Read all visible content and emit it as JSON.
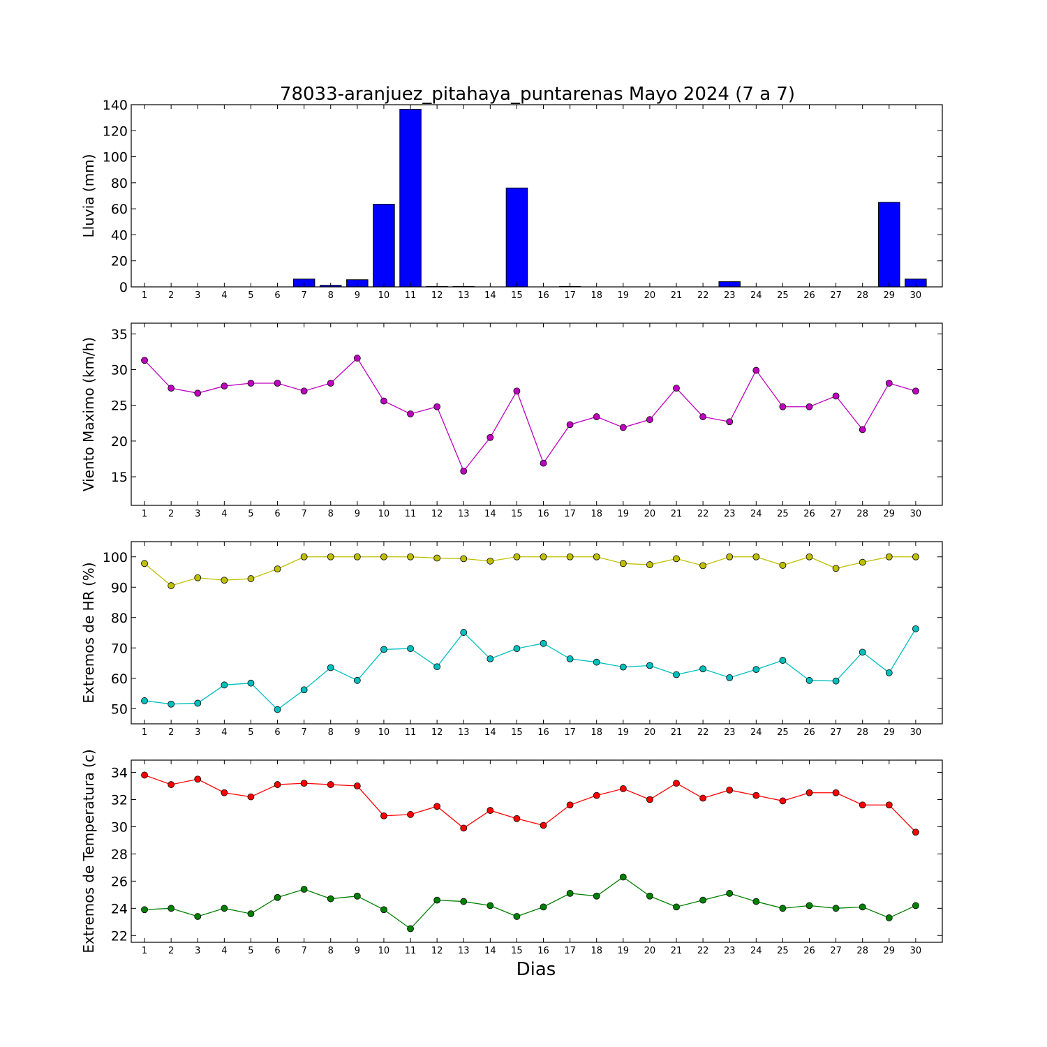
{
  "title": "78033-aranjuez_pitahaya_puntarenas Mayo 2024  (7 a 7)",
  "xlabel": "Dias",
  "chart_data": [
    {
      "type": "bar",
      "ylabel": "Lluvia (mm)",
      "ylim": [
        0,
        140
      ],
      "yticks": [
        0,
        20,
        40,
        60,
        80,
        100,
        120,
        140
      ],
      "categories": [
        1,
        2,
        3,
        4,
        5,
        6,
        7,
        8,
        9,
        10,
        11,
        12,
        13,
        14,
        15,
        16,
        17,
        18,
        19,
        20,
        21,
        22,
        23,
        24,
        25,
        26,
        27,
        28,
        29,
        30
      ],
      "series": [
        {
          "color": "#0000ff",
          "values": [
            0,
            0,
            0,
            0,
            0,
            0,
            6,
            1.2,
            5.5,
            63.5,
            136.5,
            0.3,
            0.3,
            0,
            76,
            0,
            0.3,
            0,
            0,
            0,
            0,
            0,
            4,
            0,
            0,
            0,
            0,
            0,
            65,
            6
          ]
        }
      ]
    },
    {
      "type": "line",
      "ylabel": "Viento Maximo (km/h)",
      "ylim": [
        11,
        36.5
      ],
      "yticks": [
        15,
        20,
        25,
        30,
        35
      ],
      "x": [
        1,
        2,
        3,
        4,
        5,
        6,
        7,
        8,
        9,
        10,
        11,
        12,
        13,
        14,
        15,
        16,
        17,
        18,
        19,
        20,
        21,
        22,
        23,
        24,
        25,
        26,
        27,
        28,
        29,
        30
      ],
      "series": [
        {
          "color": "#bf00bf",
          "values": [
            31.3,
            27.4,
            26.7,
            27.7,
            28.1,
            28.1,
            27.0,
            28.1,
            31.6,
            25.6,
            23.8,
            24.8,
            15.8,
            20.5,
            27.0,
            16.9,
            22.3,
            23.4,
            21.9,
            23.0,
            27.4,
            23.4,
            22.7,
            29.9,
            24.8,
            24.8,
            26.3,
            21.6,
            28.1,
            27.0
          ]
        }
      ]
    },
    {
      "type": "line",
      "ylabel": "Extremos de HR (%)",
      "ylim": [
        45,
        105
      ],
      "yticks": [
        50,
        60,
        70,
        80,
        90,
        100
      ],
      "x": [
        1,
        2,
        3,
        4,
        5,
        6,
        7,
        8,
        9,
        10,
        11,
        12,
        13,
        14,
        15,
        16,
        17,
        18,
        19,
        20,
        21,
        22,
        23,
        24,
        25,
        26,
        27,
        28,
        29,
        30
      ],
      "series": [
        {
          "color": "#bfbf00",
          "values": [
            97.8,
            90.5,
            93.1,
            92.3,
            92.8,
            96.0,
            100,
            100,
            100,
            100,
            100,
            99.6,
            99.4,
            98.6,
            100,
            100,
            100,
            100,
            97.8,
            97.4,
            99.4,
            97.1,
            100,
            100,
            97.2,
            100,
            96.2,
            98.2,
            100,
            100
          ]
        },
        {
          "color": "#00bfbf",
          "values": [
            52.6,
            51.5,
            51.8,
            57.8,
            58.4,
            49.7,
            56.2,
            63.5,
            59.3,
            69.5,
            69.8,
            63.8,
            75.1,
            66.4,
            69.8,
            71.5,
            66.4,
            65.3,
            63.7,
            64.2,
            61.2,
            63.1,
            60.2,
            62.9,
            65.9,
            59.3,
            59.1,
            68.6,
            61.8,
            76.3
          ]
        }
      ]
    },
    {
      "type": "line",
      "ylabel": "Extremos de Temperatura (c)",
      "ylim": [
        21.5,
        34.9
      ],
      "yticks": [
        22,
        24,
        26,
        28,
        30,
        32,
        34
      ],
      "x": [
        1,
        2,
        3,
        4,
        5,
        6,
        7,
        8,
        9,
        10,
        11,
        12,
        13,
        14,
        15,
        16,
        17,
        18,
        19,
        20,
        21,
        22,
        23,
        24,
        25,
        26,
        27,
        28,
        29,
        30
      ],
      "series": [
        {
          "color": "#ff0000",
          "values": [
            33.8,
            33.1,
            33.5,
            32.5,
            32.2,
            33.1,
            33.2,
            33.1,
            33.0,
            30.8,
            30.9,
            31.5,
            29.9,
            31.2,
            30.6,
            30.1,
            31.6,
            32.3,
            32.8,
            32.0,
            33.2,
            32.1,
            32.7,
            32.3,
            31.9,
            32.5,
            32.5,
            31.6,
            31.6,
            29.6
          ]
        },
        {
          "color": "#008000",
          "values": [
            23.9,
            24.0,
            23.4,
            24.0,
            23.6,
            24.8,
            25.4,
            24.7,
            24.9,
            23.9,
            22.5,
            24.6,
            24.5,
            24.2,
            23.4,
            24.1,
            25.1,
            24.9,
            26.3,
            24.9,
            24.1,
            24.6,
            25.1,
            24.5,
            24.0,
            24.2,
            24.0,
            24.1,
            23.3,
            24.2
          ]
        }
      ]
    }
  ]
}
